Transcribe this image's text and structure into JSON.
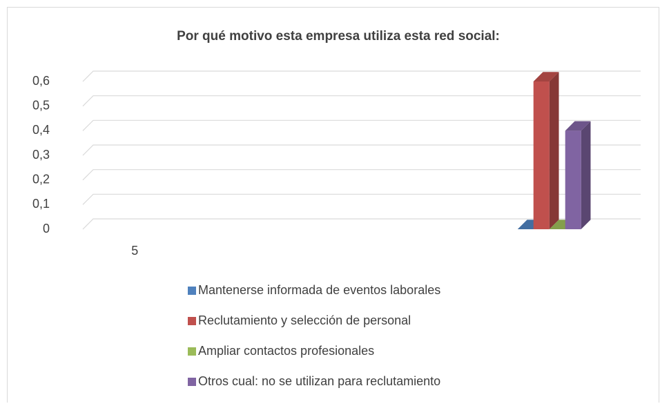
{
  "chart_data": {
    "type": "bar3d",
    "title": "Por qué motivo esta empresa utiliza esta red social:",
    "categories": [
      "5",
      null,
      null,
      null,
      null
    ],
    "series": [
      {
        "name": "Mantenerse informada de eventos laborales",
        "color": "#4f81bd",
        "values": [
          null,
          null,
          null,
          null,
          0
        ]
      },
      {
        "name": "Reclutamiento y selección de personal",
        "color": "#c0504d",
        "values": [
          null,
          null,
          null,
          null,
          0.6
        ]
      },
      {
        "name": "Ampliar contactos profesionales",
        "color": "#9bbb59",
        "values": [
          null,
          null,
          null,
          null,
          0
        ]
      },
      {
        "name": "Otros cual: no se utilizan para reclutamiento",
        "color": "#8064a2",
        "values": [
          null,
          null,
          null,
          null,
          0.4
        ]
      }
    ],
    "ylim": [
      0,
      0.6
    ],
    "yticks": [
      0,
      {
        "value": 0.1,
        "label": "0,1"
      },
      {
        "value": 0.2,
        "label": "0,2"
      },
      {
        "value": 0.3,
        "label": "0,3"
      },
      {
        "value": 0.4,
        "label": "0,4"
      },
      {
        "value": 0.5,
        "label": "0,5"
      },
      {
        "value": 0.6,
        "label": "0,6"
      }
    ],
    "grid": true,
    "legend": "bottom"
  }
}
